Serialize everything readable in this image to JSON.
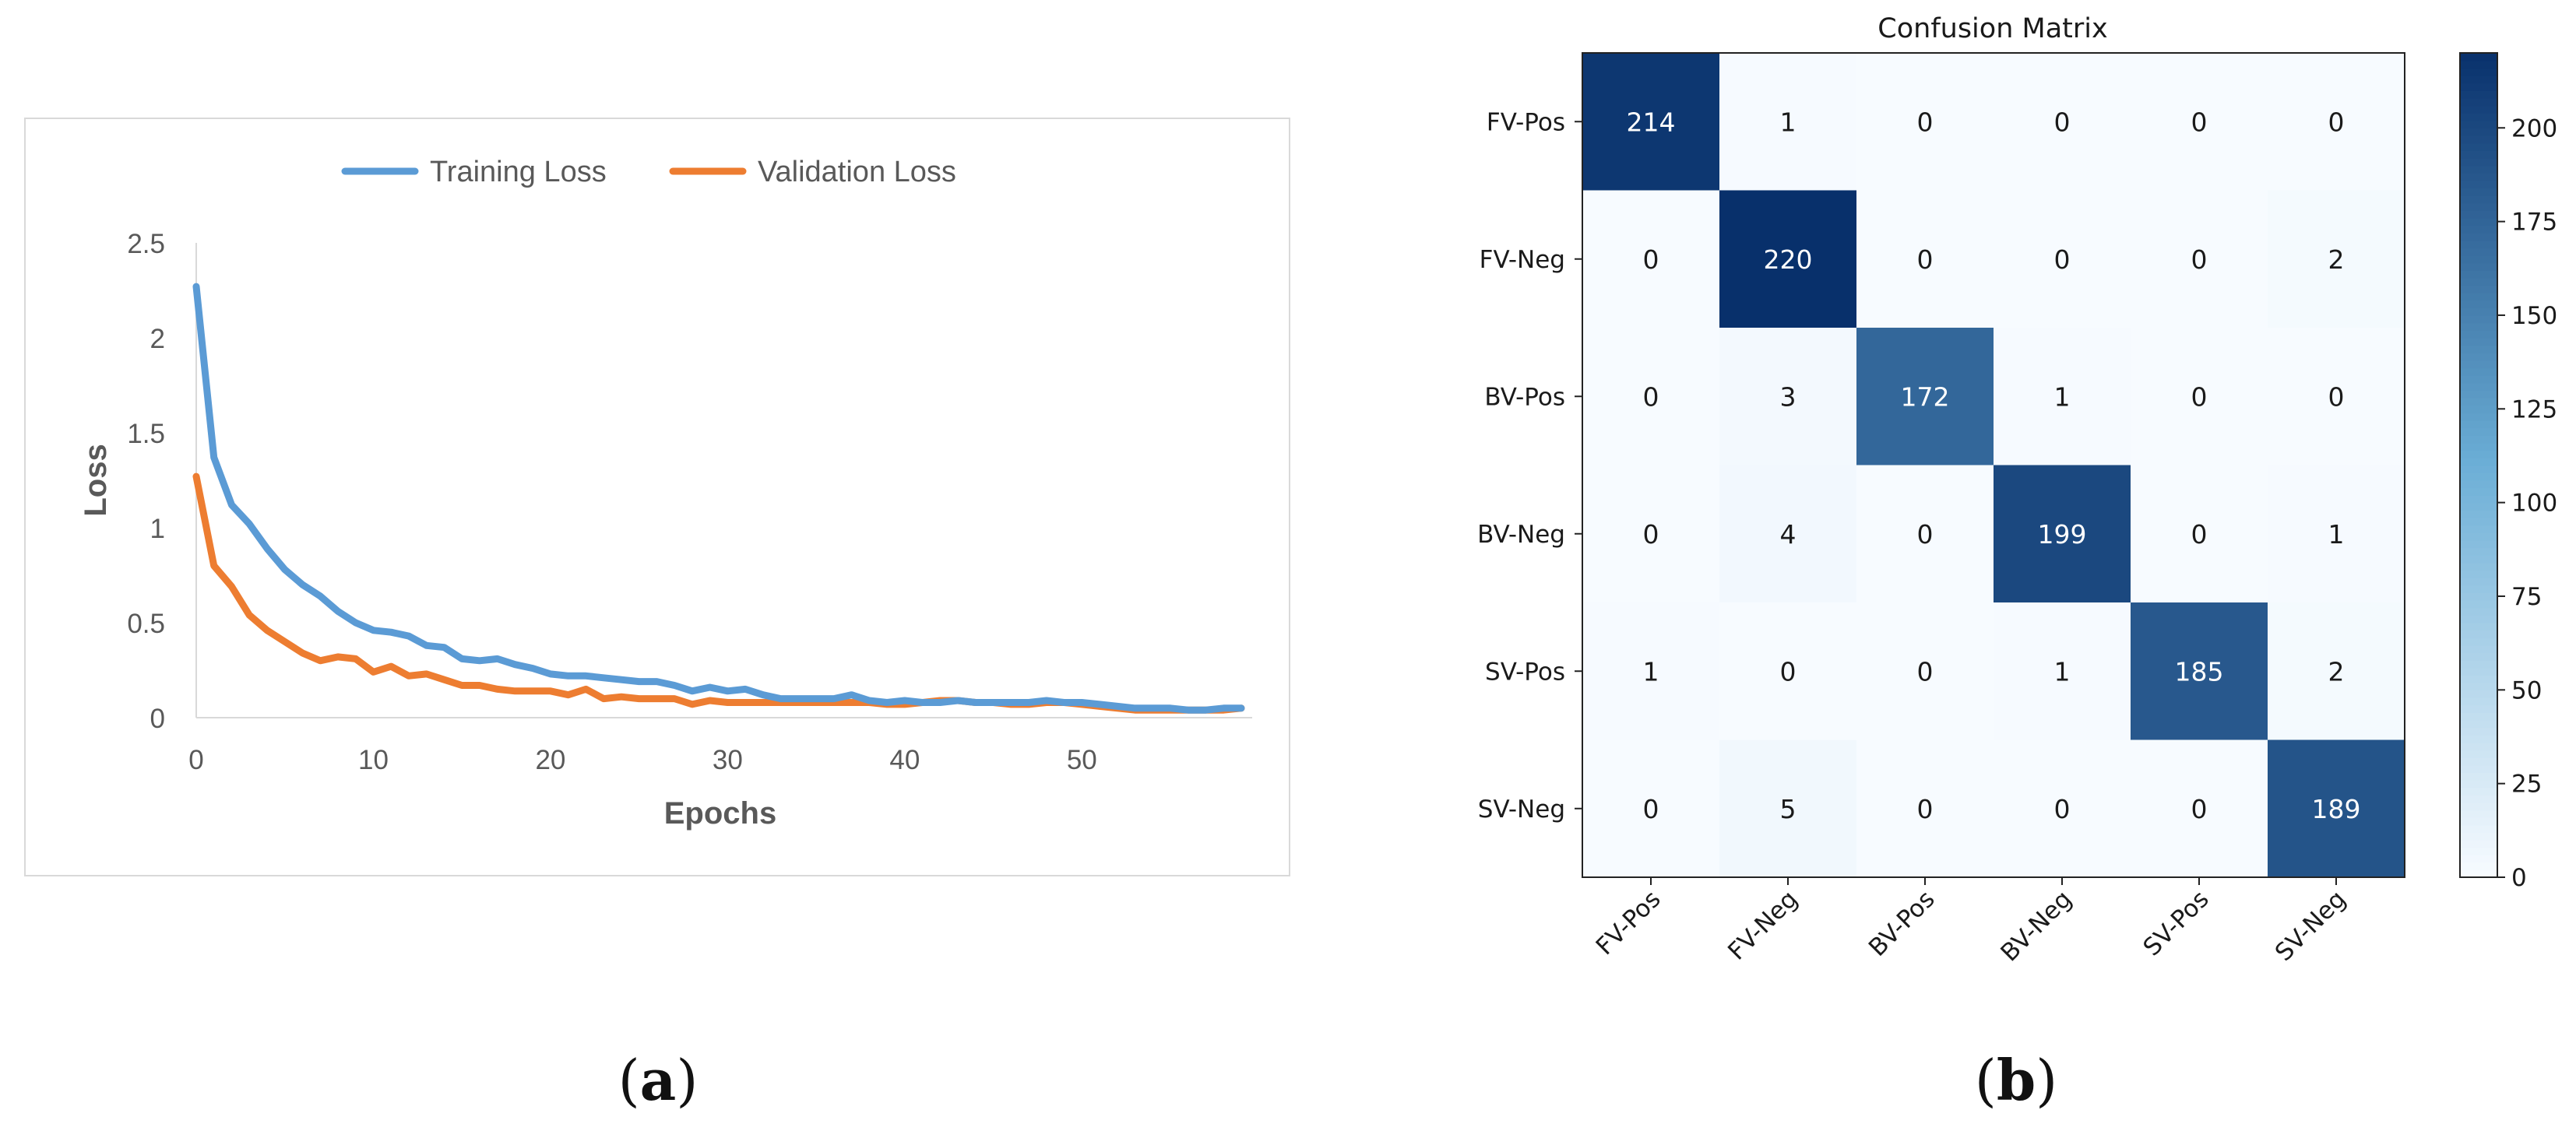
{
  "panels": {
    "a": {
      "caption_open": "(",
      "caption_letter": "a",
      "caption_close": ")"
    },
    "b": {
      "caption_open": "(",
      "caption_letter": "b",
      "caption_close": ")"
    }
  },
  "colors": {
    "training": "#5b9bd5",
    "validation": "#ed7d31",
    "cmap_low": "#f7fbff",
    "cmap_high": "#08306b"
  },
  "chart_data": [
    {
      "type": "line",
      "title": "",
      "xlabel": "Epochs",
      "ylabel": "Loss",
      "xlim": [
        0,
        59
      ],
      "ylim": [
        0,
        2.5
      ],
      "x_ticks": [
        "0",
        "10",
        "20",
        "30",
        "40",
        "50"
      ],
      "y_ticks": [
        "0",
        "0.5",
        "1",
        "1.5",
        "2",
        "2.5"
      ],
      "legend_position": "top-center",
      "x": [
        0,
        1,
        2,
        3,
        4,
        5,
        6,
        7,
        8,
        9,
        10,
        11,
        12,
        13,
        14,
        15,
        16,
        17,
        18,
        19,
        20,
        21,
        22,
        23,
        24,
        25,
        26,
        27,
        28,
        29,
        30,
        31,
        32,
        33,
        34,
        35,
        36,
        37,
        38,
        39,
        40,
        41,
        42,
        43,
        44,
        45,
        46,
        47,
        48,
        49,
        50,
        51,
        52,
        53,
        54,
        55,
        56,
        57,
        58,
        59
      ],
      "series": [
        {
          "name": "Training Loss",
          "values": [
            2.27,
            1.37,
            1.12,
            1.02,
            0.89,
            0.78,
            0.7,
            0.64,
            0.56,
            0.5,
            0.46,
            0.45,
            0.43,
            0.38,
            0.37,
            0.31,
            0.3,
            0.31,
            0.28,
            0.26,
            0.23,
            0.22,
            0.22,
            0.21,
            0.2,
            0.19,
            0.19,
            0.17,
            0.14,
            0.16,
            0.14,
            0.15,
            0.12,
            0.1,
            0.1,
            0.1,
            0.1,
            0.12,
            0.09,
            0.08,
            0.09,
            0.08,
            0.08,
            0.09,
            0.08,
            0.08,
            0.08,
            0.08,
            0.09,
            0.08,
            0.08,
            0.07,
            0.06,
            0.05,
            0.05,
            0.05,
            0.04,
            0.04,
            0.05,
            0.05
          ]
        },
        {
          "name": "Validation Loss",
          "values": [
            1.27,
            0.8,
            0.69,
            0.54,
            0.46,
            0.4,
            0.34,
            0.3,
            0.32,
            0.31,
            0.24,
            0.27,
            0.22,
            0.23,
            0.2,
            0.17,
            0.17,
            0.15,
            0.14,
            0.14,
            0.14,
            0.12,
            0.15,
            0.1,
            0.11,
            0.1,
            0.1,
            0.1,
            0.07,
            0.09,
            0.08,
            0.08,
            0.08,
            0.08,
            0.08,
            0.08,
            0.08,
            0.08,
            0.08,
            0.07,
            0.07,
            0.08,
            0.09,
            0.09,
            0.08,
            0.08,
            0.07,
            0.07,
            0.08,
            0.08,
            0.07,
            0.06,
            0.05,
            0.04,
            0.04,
            0.04,
            0.04,
            0.04,
            0.04,
            0.05
          ]
        }
      ]
    },
    {
      "type": "heatmap",
      "title": "Confusion Matrix",
      "row_labels": [
        "FV-Pos",
        "FV-Neg",
        "BV-Pos",
        "BV-Neg",
        "SV-Pos",
        "SV-Neg"
      ],
      "col_labels": [
        "FV-Pos",
        "FV-Neg",
        "BV-Pos",
        "BV-Neg",
        "SV-Pos",
        "SV-Neg"
      ],
      "matrix": [
        [
          214,
          1,
          0,
          0,
          0,
          0
        ],
        [
          0,
          220,
          0,
          0,
          0,
          2
        ],
        [
          0,
          3,
          172,
          1,
          0,
          0
        ],
        [
          0,
          4,
          0,
          199,
          0,
          1
        ],
        [
          1,
          0,
          0,
          1,
          185,
          2
        ],
        [
          0,
          5,
          0,
          0,
          0,
          189
        ]
      ],
      "colorbar_range": [
        0,
        220
      ],
      "colorbar_ticks": [
        "0",
        "25",
        "50",
        "75",
        "100",
        "125",
        "150",
        "175",
        "200"
      ]
    }
  ]
}
